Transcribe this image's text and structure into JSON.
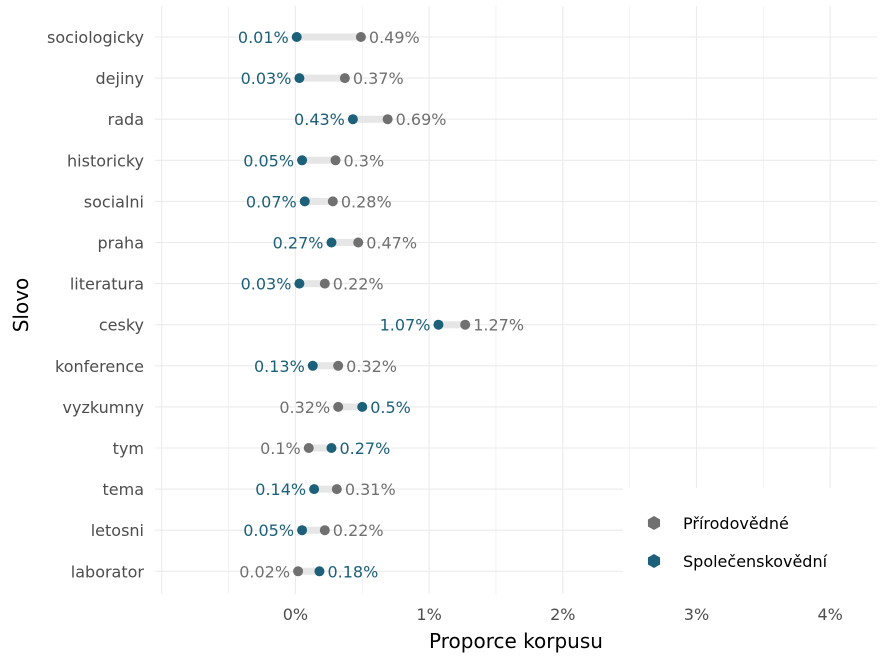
{
  "chart_data": {
    "type": "dumbbell",
    "xlabel": "Proporce korpusu",
    "ylabel": "Slovo",
    "x_ticks": [
      "0%",
      "1%",
      "2%",
      "3%",
      "4%"
    ],
    "x_tick_values": [
      0,
      1,
      2,
      3,
      4
    ],
    "xlim": [
      -1.05,
      4.35
    ],
    "grid": true,
    "legend_position": "bottom-right",
    "colors": {
      "Přírodovědné": "#707070",
      "Společenskovědní": "#1c6079"
    },
    "series": [
      {
        "name": "Přírodovědné"
      },
      {
        "name": "Společenskovědní"
      }
    ],
    "rows": [
      {
        "word": "sociologicky",
        "prirodovedne": 0.49,
        "prirodovedne_label": "0.49%",
        "spolecenskovedni": 0.01,
        "spolecenskovedni_label": "0.01%"
      },
      {
        "word": "dejiny",
        "prirodovedne": 0.37,
        "prirodovedne_label": "0.37%",
        "spolecenskovedni": 0.03,
        "spolecenskovedni_label": "0.03%"
      },
      {
        "word": "rada",
        "prirodovedne": 0.69,
        "prirodovedne_label": "0.69%",
        "spolecenskovedni": 0.43,
        "spolecenskovedni_label": "0.43%"
      },
      {
        "word": "historicky",
        "prirodovedne": 0.3,
        "prirodovedne_label": "0.3%",
        "spolecenskovedni": 0.05,
        "spolecenskovedni_label": "0.05%"
      },
      {
        "word": "socialni",
        "prirodovedne": 0.28,
        "prirodovedne_label": "0.28%",
        "spolecenskovedni": 0.07,
        "spolecenskovedni_label": "0.07%"
      },
      {
        "word": "praha",
        "prirodovedne": 0.47,
        "prirodovedne_label": "0.47%",
        "spolecenskovedni": 0.27,
        "spolecenskovedni_label": "0.27%"
      },
      {
        "word": "literatura",
        "prirodovedne": 0.22,
        "prirodovedne_label": "0.22%",
        "spolecenskovedni": 0.03,
        "spolecenskovedni_label": "0.03%"
      },
      {
        "word": "cesky",
        "prirodovedne": 1.27,
        "prirodovedne_label": "1.27%",
        "spolecenskovedni": 1.07,
        "spolecenskovedni_label": "1.07%"
      },
      {
        "word": "konference",
        "prirodovedne": 0.32,
        "prirodovedne_label": "0.32%",
        "spolecenskovedni": 0.13,
        "spolecenskovedni_label": "0.13%"
      },
      {
        "word": "vyzkumny",
        "prirodovedne": 0.32,
        "prirodovedne_label": "0.32%",
        "spolecenskovedni": 0.5,
        "spolecenskovedni_label": "0.5%"
      },
      {
        "word": "tym",
        "prirodovedne": 0.1,
        "prirodovedne_label": "0.1%",
        "spolecenskovedni": 0.27,
        "spolecenskovedni_label": "0.27%"
      },
      {
        "word": "tema",
        "prirodovedne": 0.31,
        "prirodovedne_label": "0.31%",
        "spolecenskovedni": 0.14,
        "spolecenskovedni_label": "0.14%"
      },
      {
        "word": "letosni",
        "prirodovedne": 0.22,
        "prirodovedne_label": "0.22%",
        "spolecenskovedni": 0.05,
        "spolecenskovedni_label": "0.05%"
      },
      {
        "word": "laborator",
        "prirodovedne": 0.02,
        "prirodovedne_label": "0.02%",
        "spolecenskovedni": 0.18,
        "spolecenskovedni_label": "0.18%"
      }
    ]
  }
}
